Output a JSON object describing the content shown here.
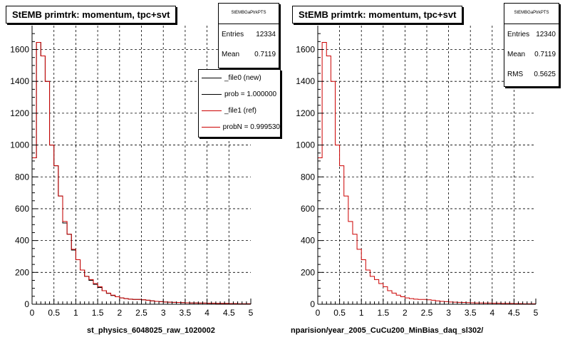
{
  "panels": [
    {
      "title": "StEMB primtrk: momentum, tpc+svt",
      "stats": {
        "name": "StEMBGaPtrkPTS",
        "entries_label": "Entries",
        "entries": "12334",
        "mean_label": "Mean",
        "mean": "0.7119",
        "rms_label": "",
        "rms": ""
      },
      "legend": [
        {
          "label": "_file0 (new)",
          "color": "#000000"
        },
        {
          "label": "prob = 1.000000",
          "color": "#000000"
        },
        {
          "label": "_file1 (ref)",
          "color": "#cc0000"
        },
        {
          "label": "probN = 0.999530",
          "color": "#cc0000"
        }
      ],
      "xtitle": "st_physics_6048025_raw_1020002"
    },
    {
      "title": "StEMB primtrk: momentum, tpc+svt",
      "stats": {
        "name": "StEMBGaPtrkPTS",
        "entries_label": "Entries",
        "entries": "12340",
        "mean_label": "Mean",
        "mean": "0.7119",
        "rms_label": "RMS",
        "rms": "0.5625"
      },
      "legend": [],
      "xtitle": "nparision/year_2005_CuCu200_MinBias_daq_sl302/"
    }
  ],
  "footer": "",
  "chart_data": [
    {
      "type": "histogram",
      "title": "StEMB primtrk: momentum, tpc+svt",
      "xlabel": "st_physics_6048025_raw_1020002",
      "ylabel": "",
      "xlim": [
        0,
        5
      ],
      "ylim": [
        0,
        1750
      ],
      "x_ticks": [
        "0",
        "0.5",
        "1",
        "1.5",
        "2",
        "2.5",
        "3",
        "3.5",
        "4",
        "4.5",
        "5"
      ],
      "y_ticks": [
        "0",
        "200",
        "400",
        "600",
        "800",
        "1000",
        "1200",
        "1400",
        "1600"
      ],
      "grid": true,
      "bin_width": 0.1,
      "series": [
        {
          "name": "_file0 (new)",
          "color": "#000000",
          "values": [
            920,
            1645,
            1560,
            1400,
            1000,
            870,
            680,
            510,
            440,
            340,
            280,
            215,
            175,
            150,
            125,
            105,
            85,
            68,
            55,
            47,
            40,
            35,
            32,
            30,
            30,
            28,
            25,
            21,
            18,
            16,
            14,
            13,
            12,
            11,
            10,
            9,
            8,
            8,
            7,
            7,
            6,
            6,
            5,
            5,
            5,
            4,
            4,
            3,
            3,
            3
          ]
        },
        {
          "name": "_file1 (ref)",
          "color": "#cc0000",
          "values": [
            920,
            1645,
            1560,
            1400,
            1000,
            870,
            680,
            520,
            440,
            345,
            280,
            215,
            175,
            155,
            130,
            110,
            85,
            70,
            57,
            47,
            40,
            35,
            32,
            30,
            30,
            28,
            25,
            21,
            18,
            16,
            14,
            13,
            12,
            11,
            10,
            9,
            8,
            8,
            7,
            7,
            6,
            6,
            5,
            5,
            5,
            4,
            4,
            3,
            3,
            3
          ]
        }
      ]
    },
    {
      "type": "histogram",
      "title": "StEMB primtrk: momentum, tpc+svt",
      "xlabel": "nparision/year_2005_CuCu200_MinBias_daq_sl302/",
      "ylabel": "",
      "xlim": [
        0,
        5
      ],
      "ylim": [
        0,
        1750
      ],
      "x_ticks": [
        "0",
        "0.5",
        "1",
        "1.5",
        "2",
        "2.5",
        "3",
        "3.5",
        "4",
        "4.5",
        "5"
      ],
      "y_ticks": [
        "0",
        "200",
        "400",
        "600",
        "800",
        "1000",
        "1200",
        "1400",
        "1600"
      ],
      "grid": true,
      "bin_width": 0.1,
      "series": [
        {
          "name": "_file1 (ref)",
          "color": "#cc0000",
          "values": [
            920,
            1645,
            1560,
            1400,
            1000,
            870,
            680,
            520,
            440,
            345,
            280,
            215,
            175,
            155,
            130,
            110,
            85,
            70,
            57,
            47,
            40,
            35,
            32,
            30,
            30,
            28,
            25,
            21,
            18,
            16,
            14,
            13,
            12,
            11,
            10,
            9,
            8,
            8,
            7,
            7,
            6,
            6,
            5,
            5,
            5,
            4,
            4,
            3,
            3,
            3
          ]
        }
      ]
    }
  ]
}
